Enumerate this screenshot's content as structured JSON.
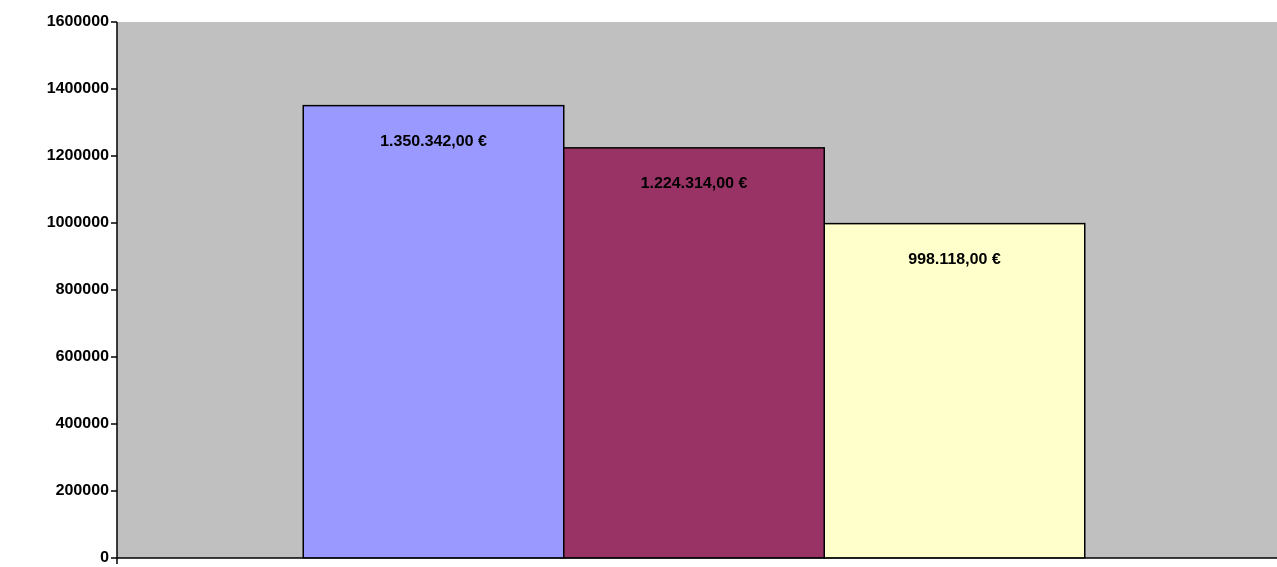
{
  "chart_data": {
    "type": "bar",
    "categories": [
      null
    ],
    "series": [
      {
        "name": null,
        "color": "#9999ff",
        "values": [
          1350342
        ],
        "value_labels": [
          "1.350.342,00 €"
        ]
      },
      {
        "name": null,
        "color": "#993366",
        "values": [
          1224314
        ],
        "value_labels": [
          "1.224.314,00 €"
        ]
      },
      {
        "name": null,
        "color": "#ffffcc",
        "values": [
          998118
        ],
        "value_labels": [
          "998.118,00 €"
        ]
      }
    ],
    "ylim": [
      0,
      1600000
    ],
    "yticks": [
      0,
      200000,
      400000,
      600000,
      800000,
      1000000,
      1200000,
      1400000,
      1600000
    ],
    "grid": false,
    "plot_background": "#c0c0c0"
  }
}
